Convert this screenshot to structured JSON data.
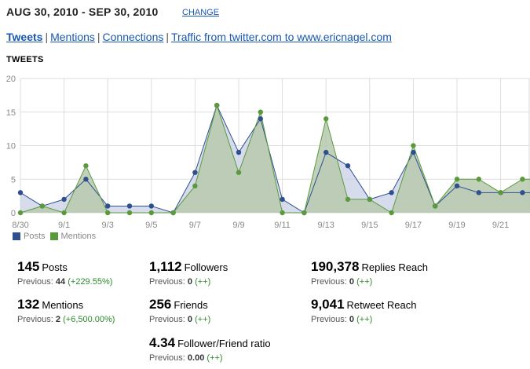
{
  "header": {
    "date_range": "AUG 30, 2010 - SEP 30, 2010",
    "change_label": "CHANGE"
  },
  "tabs": [
    {
      "label": "Tweets",
      "active": true
    },
    {
      "label": "Mentions",
      "active": false
    },
    {
      "label": "Connections",
      "active": false
    },
    {
      "label": "Traffic from twitter.com to www.ericnagel.com",
      "active": false
    }
  ],
  "tab_separator": "|",
  "section_title": "TWEETS",
  "chart_data": {
    "type": "area",
    "x_tick_labels": [
      "8/30",
      "9/1",
      "9/3",
      "9/5",
      "9/7",
      "9/9",
      "9/11",
      "9/13",
      "9/15",
      "9/17",
      "9/19",
      "9/21"
    ],
    "x": [
      "8/30",
      "8/31",
      "9/1",
      "9/2",
      "9/3",
      "9/4",
      "9/5",
      "9/6",
      "9/7",
      "9/8",
      "9/9",
      "9/10",
      "9/11",
      "9/12",
      "9/13",
      "9/14",
      "9/15",
      "9/16",
      "9/17",
      "9/18",
      "9/19",
      "9/20",
      "9/21",
      "9/22",
      "9/23"
    ],
    "ylim": [
      0,
      20
    ],
    "yticks": [
      0,
      5,
      10,
      15,
      20
    ],
    "grid": true,
    "legend_position": "bottom-left",
    "series": [
      {
        "name": "Posts",
        "color": "#2f4f8f",
        "fill": "#c9d0e6",
        "values": [
          3,
          1,
          2,
          5,
          1,
          1,
          1,
          0,
          6,
          16,
          9,
          14,
          2,
          0,
          9,
          7,
          2,
          3,
          9,
          1,
          4,
          3,
          3,
          3,
          3
        ]
      },
      {
        "name": "Mentions",
        "color": "#5a9a3c",
        "fill": "#b7c9ae",
        "values": [
          0,
          1,
          0,
          7,
          0,
          0,
          0,
          0,
          4,
          16,
          6,
          15,
          0,
          0,
          14,
          2,
          2,
          0,
          10,
          1,
          5,
          5,
          3,
          5,
          5
        ]
      }
    ]
  },
  "stats": {
    "posts": {
      "value": "145",
      "label": "Posts",
      "prev_label": "Previous:",
      "prev_value": "44",
      "change": "(+229.55%)"
    },
    "mentions": {
      "value": "132",
      "label": "Mentions",
      "prev_label": "Previous:",
      "prev_value": "2",
      "change": "(+6,500.00%)"
    },
    "followers": {
      "value": "1,112",
      "label": "Followers",
      "prev_label": "Previous:",
      "prev_value": "0",
      "change": "(++)"
    },
    "friends": {
      "value": "256",
      "label": "Friends",
      "prev_label": "Previous:",
      "prev_value": "0",
      "change": "(++)"
    },
    "ratio": {
      "value": "4.34",
      "label": "Follower/Friend ratio",
      "prev_label": "Previous:",
      "prev_value": "0.00",
      "change": "(++)"
    },
    "replies_reach": {
      "value": "190,378",
      "label": "Replies Reach",
      "prev_label": "Previous:",
      "prev_value": "0",
      "change": "(++)"
    },
    "retweet_reach": {
      "value": "9,041",
      "label": "Retweet Reach",
      "prev_label": "Previous:",
      "prev_value": "0",
      "change": "(++)"
    }
  }
}
